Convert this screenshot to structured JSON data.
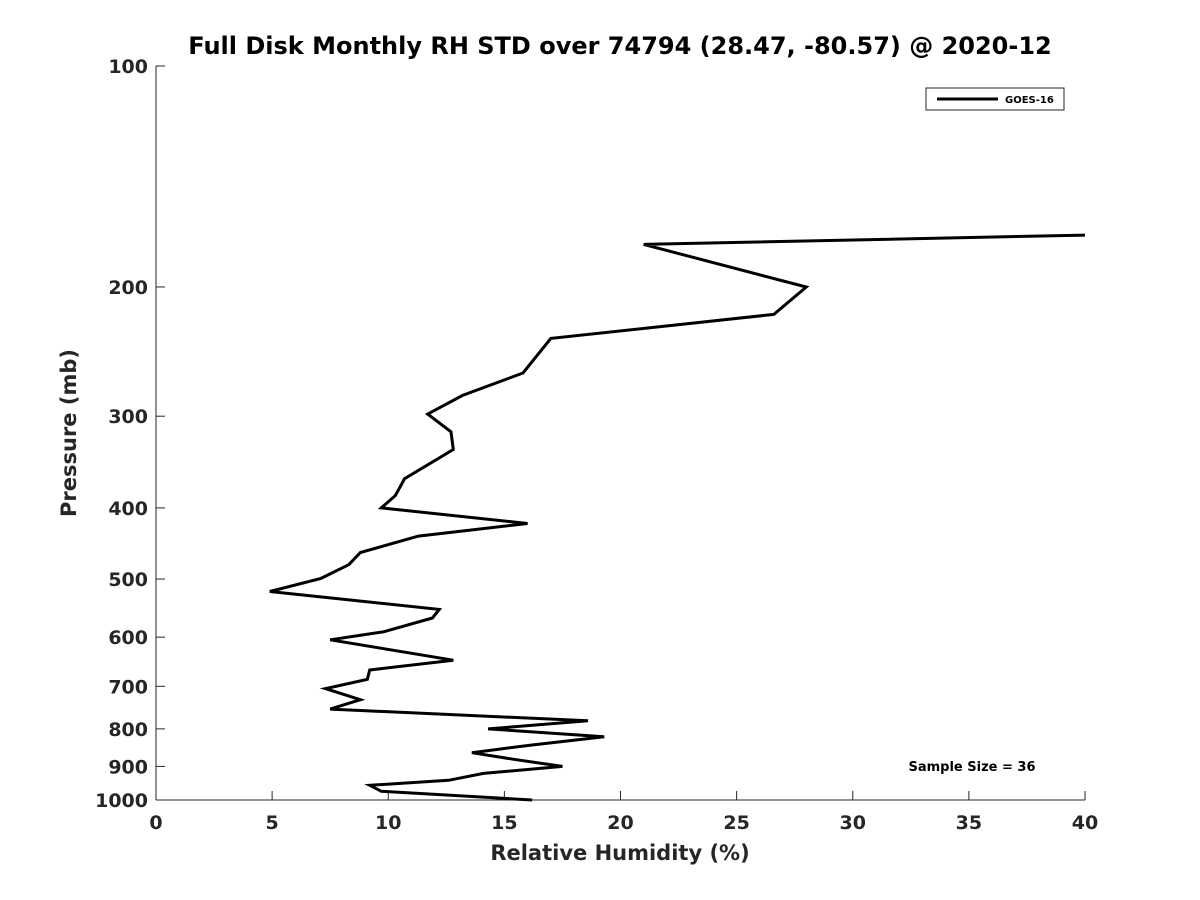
{
  "chart_data": {
    "type": "line",
    "title": "Full Disk Monthly RH STD over 74794 (28.47, -80.57) @ 2020-12",
    "xlabel": "Relative Humidity (%)",
    "ylabel": "Pressure (mb)",
    "xlim": [
      0,
      40
    ],
    "ylim": [
      100,
      1000
    ],
    "yscale": "log",
    "y_reversed": true,
    "x_ticks": [
      0,
      5,
      10,
      15,
      20,
      25,
      30,
      35,
      40
    ],
    "y_ticks": [
      100,
      200,
      300,
      400,
      500,
      600,
      700,
      800,
      900,
      1000
    ],
    "grid": false,
    "legend_position": "top-right",
    "line_color": "#000000",
    "series": [
      {
        "name": "GOES-16",
        "x": [
          40,
          21,
          28,
          26.6,
          17,
          15.8,
          13.2,
          11.7,
          12.7,
          12.8,
          10.7,
          10.5,
          10.3,
          9.7,
          16,
          11.3,
          8.8,
          8.3,
          7.1,
          4.9,
          12.2,
          11.9,
          9.8,
          7.5,
          12.8,
          9.2,
          9.1,
          7.3,
          8.8,
          7.5,
          18.6,
          14.3,
          19.3,
          16.1,
          13.6,
          15.4,
          17.5,
          14.1,
          12.6,
          9.2,
          9.7,
          16.2
        ],
        "y": [
          170,
          175,
          200,
          218,
          235,
          262,
          281,
          298,
          315,
          333,
          365,
          375,
          385,
          400,
          420,
          437,
          460,
          478,
          499,
          520,
          550,
          565,
          590,
          605,
          645,
          665,
          685,
          705,
          730,
          752,
          780,
          800,
          820,
          842,
          862,
          880,
          900,
          920,
          940,
          955,
          973,
          1000
        ]
      }
    ],
    "annotation": "Sample Size = 36"
  }
}
